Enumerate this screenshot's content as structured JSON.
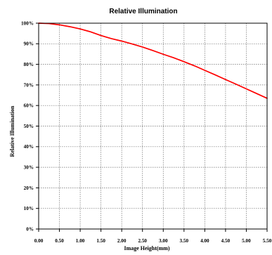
{
  "chart_data": {
    "type": "line",
    "title": "Relative Illumination",
    "xlabel": "Image Height(mm)",
    "ylabel": "Relative Illumination",
    "x_ticks": [
      "0.00",
      "0.50",
      "1.00",
      "1.50",
      "2.00",
      "2.50",
      "3.00",
      "3.50",
      "4.00",
      "4.50",
      "5.00",
      "5.50"
    ],
    "y_ticks": [
      "0%",
      "10%",
      "20%",
      "30%",
      "40%",
      "50%",
      "60%",
      "70%",
      "80%",
      "90%",
      "100%"
    ],
    "xlim": [
      0,
      5.5
    ],
    "ylim": [
      0,
      100
    ],
    "grid": true,
    "series": [
      {
        "color": "#ff0000",
        "x": [
          0.0,
          0.25,
          0.5,
          0.75,
          1.0,
          1.25,
          1.5,
          1.75,
          2.0,
          2.25,
          2.5,
          2.75,
          3.0,
          3.25,
          3.5,
          3.75,
          4.0,
          4.25,
          4.5,
          4.75,
          5.0,
          5.25,
          5.5
        ],
        "y": [
          100.0,
          99.8,
          99.2,
          98.3,
          97.2,
          95.8,
          94.0,
          92.5,
          91.3,
          89.9,
          88.4,
          86.7,
          84.9,
          83.2,
          81.3,
          79.3,
          77.1,
          74.9,
          72.6,
          70.4,
          68.1,
          65.8,
          63.5
        ]
      }
    ]
  }
}
